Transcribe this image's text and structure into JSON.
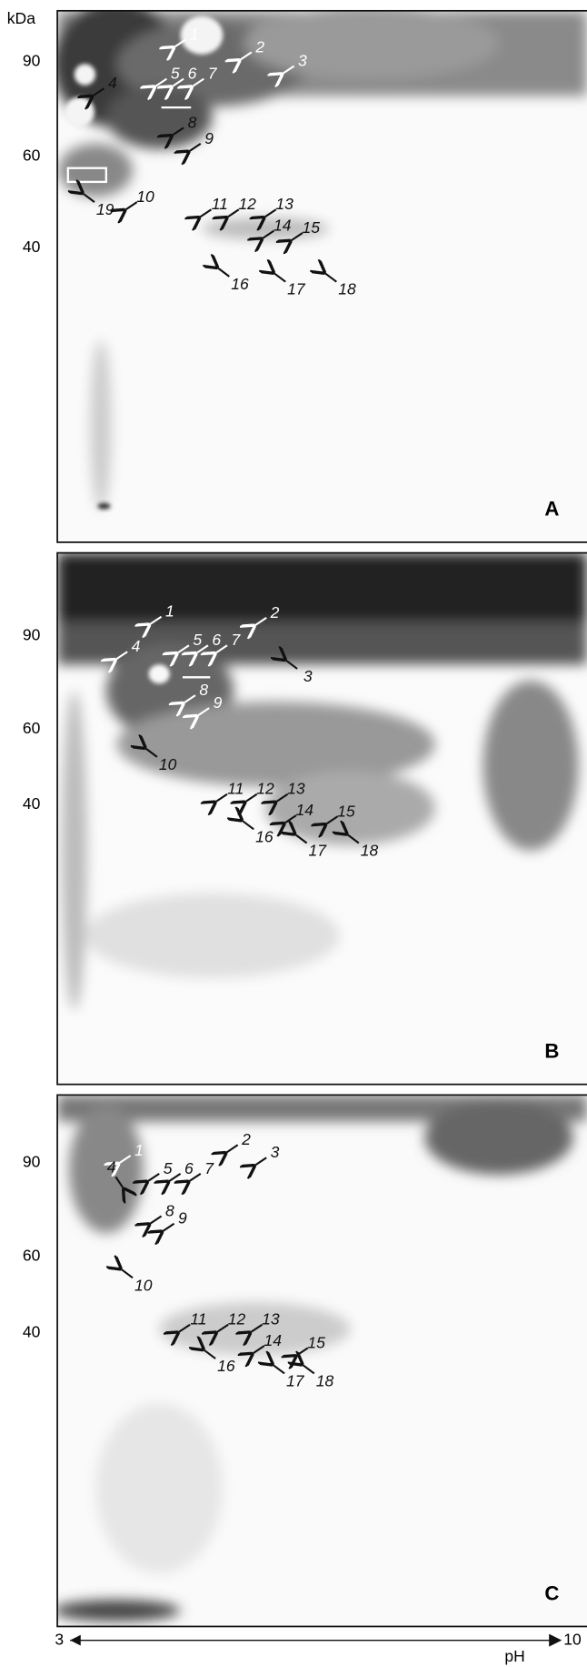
{
  "y_axis_unit": "kDa",
  "x_axis_unit": "pH",
  "x_axis_start": "3",
  "x_axis_end": "10",
  "panels": [
    {
      "label": "A",
      "y_labels": [
        "90",
        "60",
        "40"
      ],
      "spots": [
        "1",
        "2",
        "3",
        "4",
        "5",
        "6",
        "7",
        "8",
        "9",
        "10",
        "11",
        "12",
        "13",
        "14",
        "15",
        "16",
        "17",
        "18",
        "19"
      ]
    },
    {
      "label": "B",
      "y_labels": [
        "90",
        "60",
        "40"
      ],
      "spots": [
        "1",
        "2",
        "3",
        "4",
        "5",
        "6",
        "7",
        "8",
        "9",
        "10",
        "11",
        "12",
        "13",
        "14",
        "15",
        "16",
        "17",
        "18"
      ]
    },
    {
      "label": "C",
      "y_labels": [
        "90",
        "60",
        "40"
      ],
      "spots": [
        "1",
        "2",
        "3",
        "4",
        "5",
        "6",
        "7",
        "8",
        "9",
        "10",
        "11",
        "12",
        "13",
        "14",
        "15",
        "16",
        "17",
        "18"
      ]
    }
  ]
}
